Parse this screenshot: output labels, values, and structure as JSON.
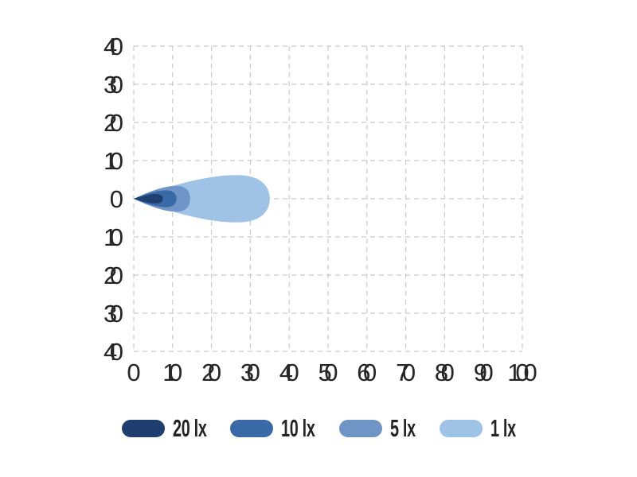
{
  "chart_data": {
    "type": "area",
    "title": "",
    "description": "Isolux beam-pattern contour chart: nested teardrop light-distribution lobes starting at origin pointing right",
    "x_range": [
      0,
      100
    ],
    "y_range": [
      -40,
      40
    ],
    "x_ticks": [
      0,
      10,
      20,
      30,
      40,
      50,
      60,
      70,
      80,
      90,
      100
    ],
    "y_tick_values": [
      40,
      30,
      20,
      10,
      0,
      -10,
      -20,
      -30,
      -40
    ],
    "y_tick_labels": [
      "40",
      "30",
      "20",
      "10",
      "0",
      "10",
      "20",
      "30",
      "40"
    ],
    "grid": "dashed",
    "grid_color": "#cbcbcb",
    "text_color": "#262626",
    "background_color": "#ffffff",
    "legend_position": "bottom",
    "contours": [
      {
        "label": "20 lx",
        "lux": 20,
        "color": "#1e3f70",
        "reach": 7.5,
        "max_half_width": 1.25
      },
      {
        "label": "10 lx",
        "lux": 10,
        "color": "#3a69a8",
        "reach": 11.0,
        "max_half_width": 2.2
      },
      {
        "label": "5 lx",
        "lux": 5,
        "color": "#6f94c6",
        "reach": 14.5,
        "max_half_width": 3.4
      },
      {
        "label": "1 lx",
        "lux": 1,
        "color": "#9fc2e7",
        "reach": 35.0,
        "max_half_width": 6.2
      }
    ]
  }
}
